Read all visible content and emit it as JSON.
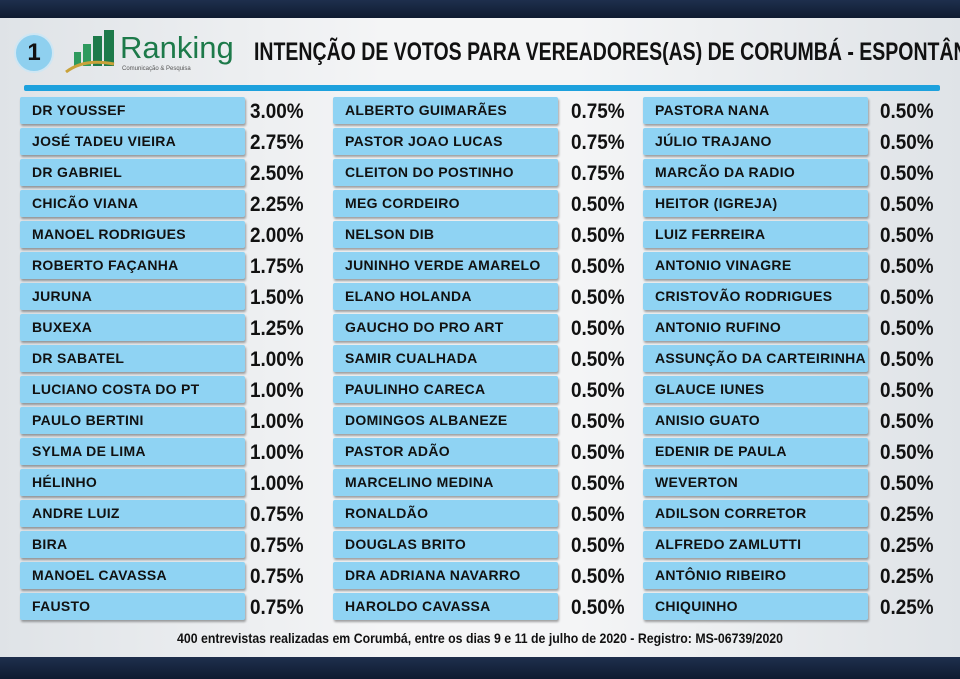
{
  "header": {
    "badge": "1",
    "logo_name": "Ranking",
    "logo_tagline": "Comunicação & Pesquisa",
    "title": "INTENÇÃO DE VOTOS PARA VEREADORES(AS) DE CORUMBÁ - ESPONTÂNEA"
  },
  "colors": {
    "row_fill": "#8fd3f3",
    "accent_rule": "#1da1dd",
    "brand_green": "#1d7a4a",
    "band": "#1e2f4d"
  },
  "footer": "400 entrevistas realizadas em Corumbá, entre os dias 9 e 11 de julho de 2020 - Registro: MS-06739/2020",
  "chart_data": {
    "type": "table",
    "columns": [
      [
        [
          "DR YOUSSEF",
          "3.00%"
        ],
        [
          "JOSÉ TADEU VIEIRA",
          "2.75%"
        ],
        [
          "DR GABRIEL",
          "2.50%"
        ],
        [
          "CHICÃO VIANA",
          "2.25%"
        ],
        [
          "MANOEL RODRIGUES",
          "2.00%"
        ],
        [
          "ROBERTO FAÇANHA",
          "1.75%"
        ],
        [
          "JURUNA",
          "1.50%"
        ],
        [
          "BUXEXA",
          "1.25%"
        ],
        [
          "DR SABATEL",
          "1.00%"
        ],
        [
          "LUCIANO COSTA DO PT",
          "1.00%"
        ],
        [
          "PAULO BERTINI",
          "1.00%"
        ],
        [
          "SYLMA DE LIMA",
          "1.00%"
        ],
        [
          "HÉLINHO",
          "1.00%"
        ],
        [
          "ANDRE LUIZ",
          "0.75%"
        ],
        [
          "BIRA",
          "0.75%"
        ],
        [
          "MANOEL CAVASSA",
          "0.75%"
        ],
        [
          "FAUSTO",
          "0.75%"
        ]
      ],
      [
        [
          "ALBERTO GUIMARÃES",
          "0.75%"
        ],
        [
          "PASTOR JOAO LUCAS",
          "0.75%"
        ],
        [
          "CLEITON DO POSTINHO",
          "0.75%"
        ],
        [
          "MEG CORDEIRO",
          "0.50%"
        ],
        [
          "NELSON DIB",
          "0.50%"
        ],
        [
          "JUNINHO VERDE AMARELO",
          "0.50%"
        ],
        [
          "ELANO HOLANDA",
          "0.50%"
        ],
        [
          "GAUCHO DO PRO ART",
          "0.50%"
        ],
        [
          "SAMIR CUALHADA",
          "0.50%"
        ],
        [
          "PAULINHO CARECA",
          "0.50%"
        ],
        [
          "DOMINGOS ALBANEZE",
          "0.50%"
        ],
        [
          "PASTOR ADÃO",
          "0.50%"
        ],
        [
          "MARCELINO MEDINA",
          "0.50%"
        ],
        [
          "RONALDÃO",
          "0.50%"
        ],
        [
          "DOUGLAS BRITO",
          "0.50%"
        ],
        [
          "DRA ADRIANA NAVARRO",
          "0.50%"
        ],
        [
          "HAROLDO CAVASSA",
          "0.50%"
        ]
      ],
      [
        [
          "PASTORA NANA",
          "0.50%"
        ],
        [
          "JÚLIO TRAJANO",
          "0.50%"
        ],
        [
          "MARCÃO DA RADIO",
          "0.50%"
        ],
        [
          "HEITOR (IGREJA)",
          "0.50%"
        ],
        [
          "LUIZ FERREIRA",
          "0.50%"
        ],
        [
          "ANTONIO VINAGRE",
          "0.50%"
        ],
        [
          "CRISTOVÃO RODRIGUES",
          "0.50%"
        ],
        [
          "ANTONIO RUFINO",
          "0.50%"
        ],
        [
          "ASSUNÇÃO DA CARTEIRINHA",
          "0.50%"
        ],
        [
          "GLAUCE IUNES",
          "0.50%"
        ],
        [
          "ANISIO GUATO",
          "0.50%"
        ],
        [
          "EDENIR DE PAULA",
          "0.50%"
        ],
        [
          "WEVERTON",
          "0.50%"
        ],
        [
          "ADILSON CORRETOR",
          "0.25%"
        ],
        [
          "ALFREDO ZAMLUTTI",
          "0.25%"
        ],
        [
          "ANTÔNIO RIBEIRO",
          "0.25%"
        ],
        [
          "CHIQUINHO",
          "0.25%"
        ]
      ]
    ]
  }
}
